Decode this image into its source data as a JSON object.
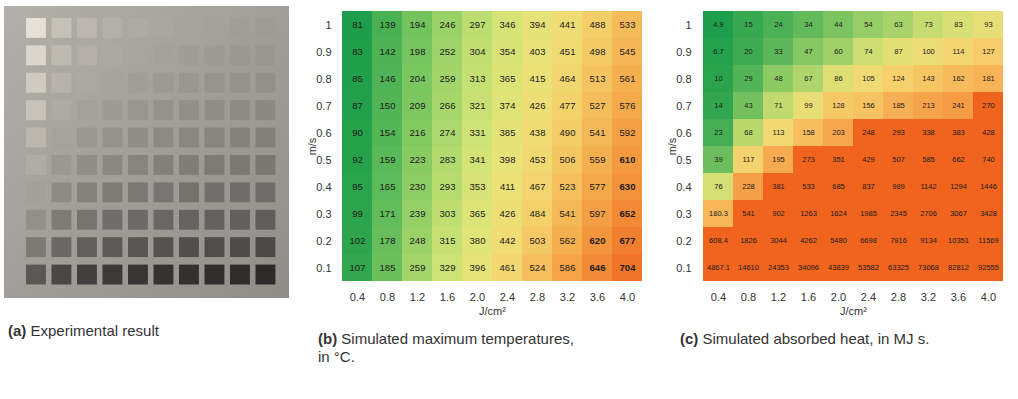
{
  "chart_data": [
    {
      "type": "image",
      "caption": "(a) Experimental result"
    },
    {
      "type": "heatmap",
      "caption": "(b) Simulated maximum temperatures, in °C.",
      "x_label": "J/cm²",
      "y_label": "m/s",
      "x": [
        "0.4",
        "0.8",
        "1.2",
        "1.6",
        "2.0",
        "2.4",
        "2.8",
        "3.2",
        "3.6",
        "4.0"
      ],
      "y": [
        "1",
        "0.9",
        "0.8",
        "0.7",
        "0.6",
        "0.5",
        "0.4",
        "0.3",
        "0.2",
        "0.1"
      ],
      "data_labels": true,
      "cells": [
        [
          81,
          139,
          194,
          246,
          297,
          346,
          394,
          441,
          488,
          533
        ],
        [
          83,
          142,
          198,
          252,
          304,
          354,
          403,
          451,
          498,
          545
        ],
        [
          85,
          146,
          204,
          259,
          313,
          365,
          415,
          464,
          513,
          561
        ],
        [
          87,
          150,
          209,
          266,
          321,
          374,
          426,
          477,
          527,
          576
        ],
        [
          90,
          154,
          216,
          274,
          331,
          385,
          438,
          490,
          541,
          592
        ],
        [
          92,
          159,
          223,
          283,
          341,
          398,
          453,
          506,
          559,
          610
        ],
        [
          95,
          165,
          230,
          293,
          353,
          411,
          467,
          523,
          577,
          630
        ],
        [
          99,
          171,
          239,
          303,
          365,
          426,
          484,
          541,
          597,
          652
        ],
        [
          102,
          178,
          248,
          315,
          380,
          442,
          503,
          562,
          620,
          677
        ],
        [
          107,
          185,
          259,
          329,
          396,
          461,
          524,
          586,
          646,
          704
        ]
      ]
    },
    {
      "type": "heatmap",
      "caption": "(c) Simulated absorbed heat, in MJ s.",
      "x_label": "J/cm²",
      "y_label": "m/s",
      "x": [
        "0.4",
        "0.8",
        "1.2",
        "1.6",
        "2.0",
        "2.4",
        "2.8",
        "3.2",
        "3.6",
        "4.0"
      ],
      "y": [
        "1",
        "0.9",
        "0.8",
        "0.7",
        "0.6",
        "0.5",
        "0.4",
        "0.3",
        "0.2",
        "0.1"
      ],
      "data_labels": true,
      "cells": [
        [
          4.9,
          15,
          24,
          34,
          44,
          54,
          63,
          73,
          83,
          93
        ],
        [
          6.7,
          20,
          33,
          47,
          60,
          74,
          87,
          100,
          114,
          127
        ],
        [
          10,
          29,
          48,
          67,
          86,
          105,
          124,
          143,
          162,
          181
        ],
        [
          14,
          43,
          71,
          99,
          128,
          156,
          185,
          213,
          241,
          270
        ],
        [
          23,
          68,
          113,
          158,
          203,
          248,
          293,
          338,
          383,
          428
        ],
        [
          39,
          117,
          195,
          273,
          351,
          429,
          507,
          585,
          662,
          740
        ],
        [
          76,
          228,
          381,
          533,
          685,
          837,
          989,
          1142,
          1294,
          1446
        ],
        [
          180.3,
          541,
          902,
          1263,
          1624,
          1985,
          2345,
          2706,
          3067,
          3428
        ],
        [
          608.4,
          1826,
          3044,
          4262,
          5480,
          6698,
          7916,
          9134,
          10351,
          11569
        ],
        [
          4867.1,
          14610,
          24353,
          34096,
          43839,
          53582,
          63325,
          73068,
          82812,
          92555
        ]
      ]
    }
  ]
}
